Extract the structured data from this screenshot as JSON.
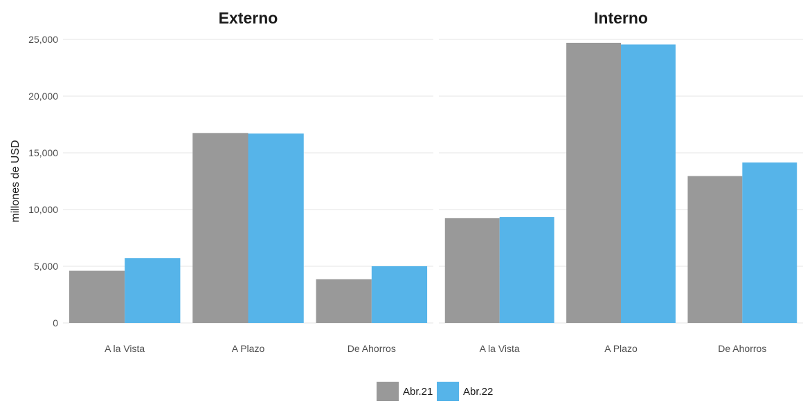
{
  "chart_data": {
    "type": "bar",
    "ylabel": "millones de USD",
    "ylim": [
      0,
      25000
    ],
    "yticks": [
      0,
      5000,
      10000,
      15000,
      20000,
      25000
    ],
    "ytick_labels": [
      "0",
      "5,000",
      "10,000",
      "15,000",
      "20,000",
      "25,000"
    ],
    "grid": true,
    "legend_position": "bottom",
    "series_names": [
      "Abr.21",
      "Abr.22"
    ],
    "colors": [
      "#999999",
      "#56b4e9"
    ],
    "panels": [
      {
        "title": "Externo",
        "categories": [
          "A la Vista",
          "A Plazo",
          "De Ahorros"
        ],
        "series": [
          {
            "name": "Abr.21",
            "values": [
              4600,
              16750,
              3850
            ]
          },
          {
            "name": "Abr.22",
            "values": [
              5720,
              16700,
              5000
            ]
          }
        ]
      },
      {
        "title": "Interno",
        "categories": [
          "A la Vista",
          "A Plazo",
          "De Ahorros"
        ],
        "series": [
          {
            "name": "Abr.21",
            "values": [
              9250,
              24700,
              12950
            ]
          },
          {
            "name": "Abr.22",
            "values": [
              9330,
              24550,
              14150
            ]
          }
        ]
      }
    ]
  }
}
